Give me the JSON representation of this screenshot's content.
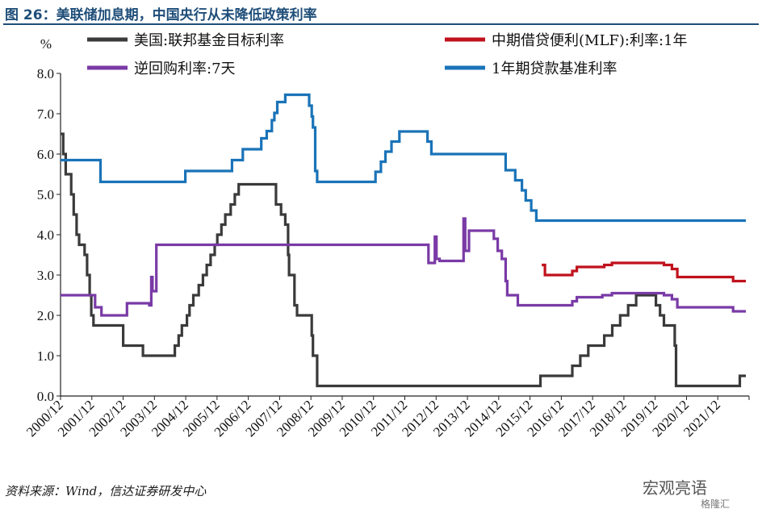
{
  "figure": {
    "title": "图 26：美联储加息期，中国央行从未降低政策利率",
    "source": "资料来源：Wind，信达证券研发中心",
    "watermark": "宏观亮语",
    "watermark_sub": "格隆汇"
  },
  "chart_data": {
    "type": "line",
    "ylabel": "%",
    "ylim": [
      0,
      8
    ],
    "yticks": [
      "0.0",
      "1.0",
      "2.0",
      "3.0",
      "4.0",
      "5.0",
      "6.0",
      "7.0",
      "8.0"
    ],
    "xlim": [
      2000.917,
      2022.5
    ],
    "xticks": [
      "2000/12",
      "2001/12",
      "2002/12",
      "2003/12",
      "2004/12",
      "2005/12",
      "2006/12",
      "2007/12",
      "2008/12",
      "2009/12",
      "2010/12",
      "2011/12",
      "2012/12",
      "2013/12",
      "2014/12",
      "2015/12",
      "2016/12",
      "2017/12",
      "2018/12",
      "2019/12",
      "2020/12",
      "2021/12"
    ],
    "grid": false,
    "legend_position": "top",
    "series": [
      {
        "name": "美国:联邦基金目标利率",
        "color": "#3a3a3a",
        "points": [
          [
            2000.917,
            6.5
          ],
          [
            2001.0,
            6.5
          ],
          [
            2001.0,
            6.0
          ],
          [
            2001.08,
            6.0
          ],
          [
            2001.08,
            5.5
          ],
          [
            2001.25,
            5.5
          ],
          [
            2001.25,
            5.0
          ],
          [
            2001.33,
            5.0
          ],
          [
            2001.33,
            4.5
          ],
          [
            2001.42,
            4.5
          ],
          [
            2001.42,
            4.0
          ],
          [
            2001.5,
            4.0
          ],
          [
            2001.5,
            3.75
          ],
          [
            2001.67,
            3.75
          ],
          [
            2001.67,
            3.5
          ],
          [
            2001.75,
            3.5
          ],
          [
            2001.75,
            3.0
          ],
          [
            2001.83,
            3.0
          ],
          [
            2001.83,
            2.5
          ],
          [
            2001.88,
            2.5
          ],
          [
            2001.88,
            2.0
          ],
          [
            2001.95,
            2.0
          ],
          [
            2001.95,
            1.75
          ],
          [
            2002.88,
            1.75
          ],
          [
            2002.88,
            1.25
          ],
          [
            2003.5,
            1.25
          ],
          [
            2003.5,
            1.0
          ],
          [
            2004.5,
            1.0
          ],
          [
            2004.5,
            1.25
          ],
          [
            2004.62,
            1.25
          ],
          [
            2004.62,
            1.5
          ],
          [
            2004.72,
            1.5
          ],
          [
            2004.72,
            1.75
          ],
          [
            2004.88,
            1.75
          ],
          [
            2004.88,
            2.0
          ],
          [
            2004.96,
            2.0
          ],
          [
            2004.96,
            2.25
          ],
          [
            2005.08,
            2.25
          ],
          [
            2005.08,
            2.5
          ],
          [
            2005.25,
            2.5
          ],
          [
            2005.25,
            2.75
          ],
          [
            2005.38,
            2.75
          ],
          [
            2005.38,
            3.0
          ],
          [
            2005.5,
            3.0
          ],
          [
            2005.5,
            3.25
          ],
          [
            2005.62,
            3.25
          ],
          [
            2005.62,
            3.5
          ],
          [
            2005.75,
            3.5
          ],
          [
            2005.75,
            3.75
          ],
          [
            2005.83,
            3.75
          ],
          [
            2005.83,
            4.0
          ],
          [
            2005.96,
            4.0
          ],
          [
            2005.96,
            4.25
          ],
          [
            2006.08,
            4.25
          ],
          [
            2006.08,
            4.5
          ],
          [
            2006.25,
            4.5
          ],
          [
            2006.25,
            4.75
          ],
          [
            2006.38,
            4.75
          ],
          [
            2006.38,
            5.0
          ],
          [
            2006.5,
            5.0
          ],
          [
            2006.5,
            5.25
          ],
          [
            2007.67,
            5.25
          ],
          [
            2007.67,
            4.75
          ],
          [
            2007.83,
            4.75
          ],
          [
            2007.83,
            4.5
          ],
          [
            2007.96,
            4.5
          ],
          [
            2007.96,
            4.25
          ],
          [
            2008.05,
            4.25
          ],
          [
            2008.05,
            3.5
          ],
          [
            2008.08,
            3.5
          ],
          [
            2008.08,
            3.0
          ],
          [
            2008.25,
            3.0
          ],
          [
            2008.25,
            2.25
          ],
          [
            2008.33,
            2.25
          ],
          [
            2008.33,
            2.0
          ],
          [
            2008.79,
            2.0
          ],
          [
            2008.79,
            1.5
          ],
          [
            2008.83,
            1.5
          ],
          [
            2008.83,
            1.0
          ],
          [
            2008.96,
            1.0
          ],
          [
            2008.96,
            0.25
          ],
          [
            2015.96,
            0.25
          ],
          [
            2015.96,
            0.5
          ],
          [
            2016.96,
            0.5
          ],
          [
            2016.96,
            0.75
          ],
          [
            2017.21,
            0.75
          ],
          [
            2017.21,
            1.0
          ],
          [
            2017.46,
            1.0
          ],
          [
            2017.46,
            1.25
          ],
          [
            2017.96,
            1.25
          ],
          [
            2017.96,
            1.5
          ],
          [
            2018.21,
            1.5
          ],
          [
            2018.21,
            1.75
          ],
          [
            2018.46,
            1.75
          ],
          [
            2018.46,
            2.0
          ],
          [
            2018.71,
            2.0
          ],
          [
            2018.71,
            2.25
          ],
          [
            2018.96,
            2.25
          ],
          [
            2018.96,
            2.5
          ],
          [
            2019.58,
            2.5
          ],
          [
            2019.58,
            2.25
          ],
          [
            2019.71,
            2.25
          ],
          [
            2019.71,
            2.0
          ],
          [
            2019.83,
            2.0
          ],
          [
            2019.83,
            1.75
          ],
          [
            2020.17,
            1.75
          ],
          [
            2020.17,
            1.25
          ],
          [
            2020.21,
            1.25
          ],
          [
            2020.21,
            0.25
          ],
          [
            2022.21,
            0.25
          ],
          [
            2022.21,
            0.5
          ],
          [
            2022.4,
            0.5
          ]
        ]
      },
      {
        "name": "逆回购利率:7天",
        "color": "#7a3aa6",
        "points": [
          [
            2000.917,
            2.5
          ],
          [
            2002.0,
            2.5
          ],
          [
            2002.0,
            2.2
          ],
          [
            2002.2,
            2.2
          ],
          [
            2002.2,
            2.0
          ],
          [
            2003.0,
            2.0
          ],
          [
            2003.0,
            2.3
          ],
          [
            2003.7,
            2.3
          ],
          [
            2003.7,
            2.25
          ],
          [
            2003.76,
            2.25
          ],
          [
            2003.76,
            2.95
          ],
          [
            2003.8,
            2.95
          ],
          [
            2003.8,
            2.6
          ],
          [
            2003.92,
            2.6
          ],
          [
            2003.92,
            3.75
          ],
          [
            2012.45,
            3.75
          ],
          [
            2012.45,
            3.3
          ],
          [
            2012.65,
            3.3
          ],
          [
            2012.65,
            3.95
          ],
          [
            2012.7,
            3.95
          ],
          [
            2012.7,
            3.4
          ],
          [
            2012.8,
            3.4
          ],
          [
            2012.8,
            3.35
          ],
          [
            2013.55,
            3.35
          ],
          [
            2013.55,
            4.4
          ],
          [
            2013.6,
            4.4
          ],
          [
            2013.6,
            3.6
          ],
          [
            2013.72,
            3.6
          ],
          [
            2013.72,
            4.1
          ],
          [
            2014.5,
            4.1
          ],
          [
            2014.5,
            3.9
          ],
          [
            2014.62,
            3.9
          ],
          [
            2014.62,
            3.6
          ],
          [
            2014.75,
            3.6
          ],
          [
            2014.75,
            3.4
          ],
          [
            2014.87,
            3.4
          ],
          [
            2014.87,
            2.85
          ],
          [
            2014.92,
            2.85
          ],
          [
            2014.92,
            2.5
          ],
          [
            2015.25,
            2.5
          ],
          [
            2015.25,
            2.25
          ],
          [
            2016.96,
            2.25
          ],
          [
            2016.96,
            2.35
          ],
          [
            2017.1,
            2.35
          ],
          [
            2017.1,
            2.45
          ],
          [
            2017.9,
            2.45
          ],
          [
            2017.9,
            2.5
          ],
          [
            2018.2,
            2.5
          ],
          [
            2018.2,
            2.55
          ],
          [
            2019.83,
            2.55
          ],
          [
            2019.83,
            2.5
          ],
          [
            2020.08,
            2.5
          ],
          [
            2020.08,
            2.4
          ],
          [
            2020.25,
            2.4
          ],
          [
            2020.25,
            2.2
          ],
          [
            2022.0,
            2.2
          ],
          [
            2022.0,
            2.1
          ],
          [
            2022.4,
            2.1
          ]
        ]
      },
      {
        "name": "中期借贷便利(MLF):利率:1年",
        "color": "#c0121d",
        "points": [
          [
            2016.0,
            3.25
          ],
          [
            2016.1,
            3.25
          ],
          [
            2016.1,
            3.0
          ],
          [
            2016.96,
            3.0
          ],
          [
            2016.96,
            3.1
          ],
          [
            2017.1,
            3.1
          ],
          [
            2017.1,
            3.2
          ],
          [
            2017.96,
            3.2
          ],
          [
            2017.96,
            3.25
          ],
          [
            2018.2,
            3.25
          ],
          [
            2018.2,
            3.3
          ],
          [
            2019.83,
            3.3
          ],
          [
            2019.83,
            3.25
          ],
          [
            2020.08,
            3.25
          ],
          [
            2020.08,
            3.15
          ],
          [
            2020.25,
            3.15
          ],
          [
            2020.25,
            2.95
          ],
          [
            2022.0,
            2.95
          ],
          [
            2022.0,
            2.85
          ],
          [
            2022.4,
            2.85
          ]
        ]
      },
      {
        "name": "1年期贷款基准利率",
        "color": "#1a73b8",
        "points": [
          [
            2000.917,
            5.85
          ],
          [
            2002.17,
            5.85
          ],
          [
            2002.17,
            5.31
          ],
          [
            2004.83,
            5.31
          ],
          [
            2004.83,
            5.58
          ],
          [
            2006.29,
            5.58
          ],
          [
            2006.29,
            5.85
          ],
          [
            2006.63,
            5.85
          ],
          [
            2006.63,
            6.12
          ],
          [
            2007.21,
            6.12
          ],
          [
            2007.21,
            6.39
          ],
          [
            2007.38,
            6.39
          ],
          [
            2007.38,
            6.57
          ],
          [
            2007.54,
            6.57
          ],
          [
            2007.54,
            6.84
          ],
          [
            2007.62,
            6.84
          ],
          [
            2007.62,
            7.02
          ],
          [
            2007.71,
            7.02
          ],
          [
            2007.71,
            7.29
          ],
          [
            2007.96,
            7.29
          ],
          [
            2007.96,
            7.47
          ],
          [
            2008.71,
            7.47
          ],
          [
            2008.71,
            7.2
          ],
          [
            2008.79,
            7.2
          ],
          [
            2008.79,
            6.93
          ],
          [
            2008.83,
            6.93
          ],
          [
            2008.83,
            6.66
          ],
          [
            2008.9,
            6.66
          ],
          [
            2008.9,
            5.58
          ],
          [
            2008.96,
            5.58
          ],
          [
            2008.96,
            5.31
          ],
          [
            2010.79,
            5.31
          ],
          [
            2010.79,
            5.56
          ],
          [
            2010.96,
            5.56
          ],
          [
            2010.96,
            5.81
          ],
          [
            2011.1,
            5.81
          ],
          [
            2011.1,
            6.06
          ],
          [
            2011.29,
            6.06
          ],
          [
            2011.29,
            6.31
          ],
          [
            2011.54,
            6.31
          ],
          [
            2011.54,
            6.56
          ],
          [
            2012.42,
            6.56
          ],
          [
            2012.42,
            6.31
          ],
          [
            2012.54,
            6.31
          ],
          [
            2012.54,
            6.0
          ],
          [
            2014.87,
            6.0
          ],
          [
            2014.87,
            5.6
          ],
          [
            2015.17,
            5.6
          ],
          [
            2015.17,
            5.35
          ],
          [
            2015.38,
            5.35
          ],
          [
            2015.38,
            5.1
          ],
          [
            2015.5,
            5.1
          ],
          [
            2015.5,
            4.85
          ],
          [
            2015.67,
            4.85
          ],
          [
            2015.67,
            4.6
          ],
          [
            2015.83,
            4.6
          ],
          [
            2015.83,
            4.35
          ],
          [
            2022.4,
            4.35
          ]
        ]
      }
    ]
  }
}
